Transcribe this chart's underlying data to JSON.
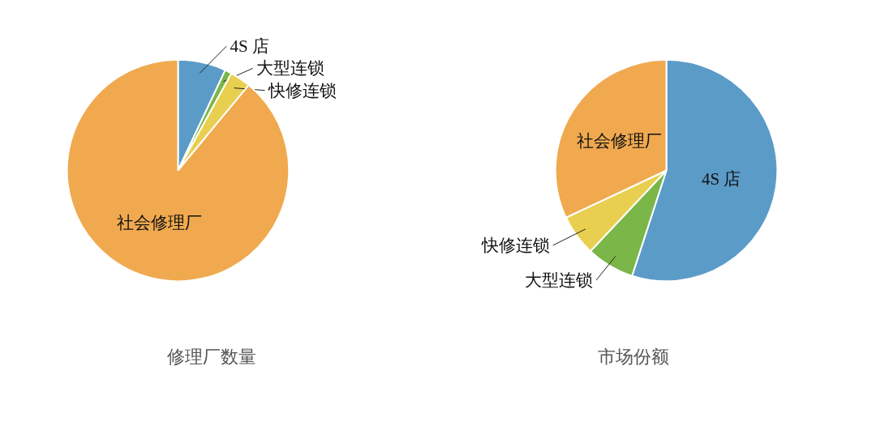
{
  "chart_data": [
    {
      "type": "pie",
      "title": "修理厂数量",
      "categories": [
        "4S 店",
        "大型连锁",
        "快修连锁",
        "社会修理厂"
      ],
      "values": [
        7,
        1,
        3,
        89
      ],
      "colors": [
        "#5b9bc8",
        "#7ab648",
        "#e8cf50",
        "#f0a94f"
      ]
    },
    {
      "type": "pie",
      "title": "市场份额",
      "categories": [
        "4S 店",
        "大型连锁",
        "快修连锁",
        "社会修理厂"
      ],
      "values": [
        55,
        7,
        6,
        32
      ],
      "colors": [
        "#5b9bc8",
        "#7ab648",
        "#e8cf50",
        "#f0a94f"
      ]
    }
  ]
}
